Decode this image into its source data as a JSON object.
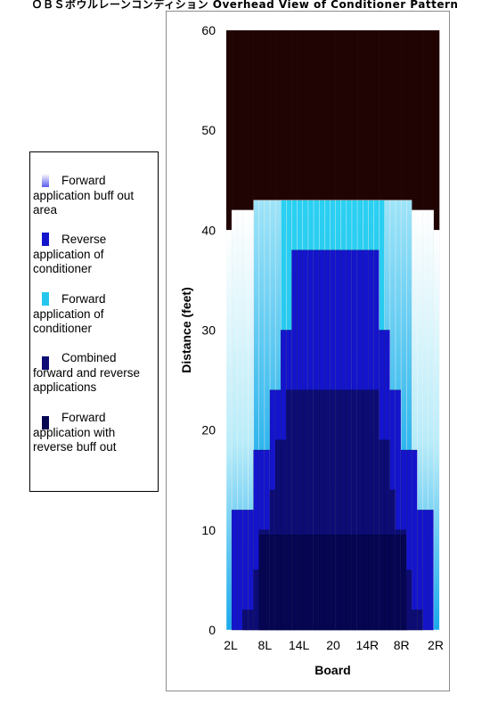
{
  "chart_data": {
    "type": "heatmap",
    "title": "ＯＢＳボウルレーンコンディション Overhead View of Conditioner Pattern",
    "xlabel": "Board",
    "ylabel": "Distance (feet)",
    "ylim": [
      0,
      60
    ],
    "y_ticks": [
      0,
      10,
      20,
      30,
      40,
      50,
      60
    ],
    "x_ticks": [
      "2L",
      "8L",
      "14L",
      "20",
      "14R",
      "8R",
      "2R"
    ],
    "boards": 39,
    "grid": false,
    "legend_position": "left",
    "legend": [
      {
        "label": "Forward application buff out area",
        "color": "#6d6df0"
      },
      {
        "label": "Reverse application of conditioner",
        "color": "#1414cc"
      },
      {
        "label": "Forward application of conditioner",
        "color": "#24c6ee"
      },
      {
        "label": "Combined forward and reverse applications",
        "color": "#0c0c74"
      },
      {
        "label": "Forward application with reverse buff out",
        "color": "#050552"
      }
    ],
    "colors": {
      "dry_lane": "#200303",
      "white": "#ffffff",
      "light_cyan": "#d8f4fb",
      "cyan": "#24c6ee",
      "deep_sky": "#1aa9ec",
      "blue": "#1414cc",
      "navy": "#0c0c74",
      "darkest": "#050552"
    },
    "pattern": {
      "forward_length_by_board": [
        40,
        42,
        42,
        42,
        42,
        43,
        43,
        43,
        43,
        43,
        43,
        43,
        43,
        43,
        43,
        43,
        43,
        43,
        43,
        43,
        43,
        43,
        43,
        43,
        43,
        43,
        43,
        43,
        43,
        43,
        43,
        43,
        43,
        43,
        42,
        42,
        42,
        42,
        40
      ],
      "reverse_length_by_board": [
        0,
        12,
        12,
        12,
        12,
        18,
        18,
        18,
        24,
        24,
        30,
        30,
        38,
        38,
        38,
        38,
        38,
        38,
        38,
        38,
        38,
        38,
        38,
        38,
        38,
        38,
        38,
        38,
        30,
        30,
        24,
        24,
        18,
        18,
        18,
        12,
        12,
        12,
        0
      ],
      "combined_length_by_board": [
        0,
        0,
        0,
        2,
        2,
        6,
        10,
        10,
        14,
        19,
        19,
        24,
        24,
        24,
        24,
        24,
        24,
        24,
        24,
        24,
        24,
        24,
        24,
        24,
        24,
        24,
        24,
        24,
        19,
        19,
        14,
        10,
        10,
        6,
        2,
        2,
        0,
        0,
        0
      ],
      "darkest_length_by_board": [
        0,
        0,
        0,
        0,
        0,
        0,
        9.5,
        9.5,
        9.5,
        9.5,
        9.5,
        9.5,
        9.5,
        9.5,
        9.5,
        9.5,
        9.5,
        9.5,
        9.5,
        9.5,
        9.5,
        9.5,
        9.5,
        9.5,
        9.5,
        9.5,
        9.5,
        9.5,
        9.5,
        9.5,
        9.5,
        9.5,
        9.5,
        0,
        0,
        0,
        0,
        0,
        0
      ]
    }
  }
}
